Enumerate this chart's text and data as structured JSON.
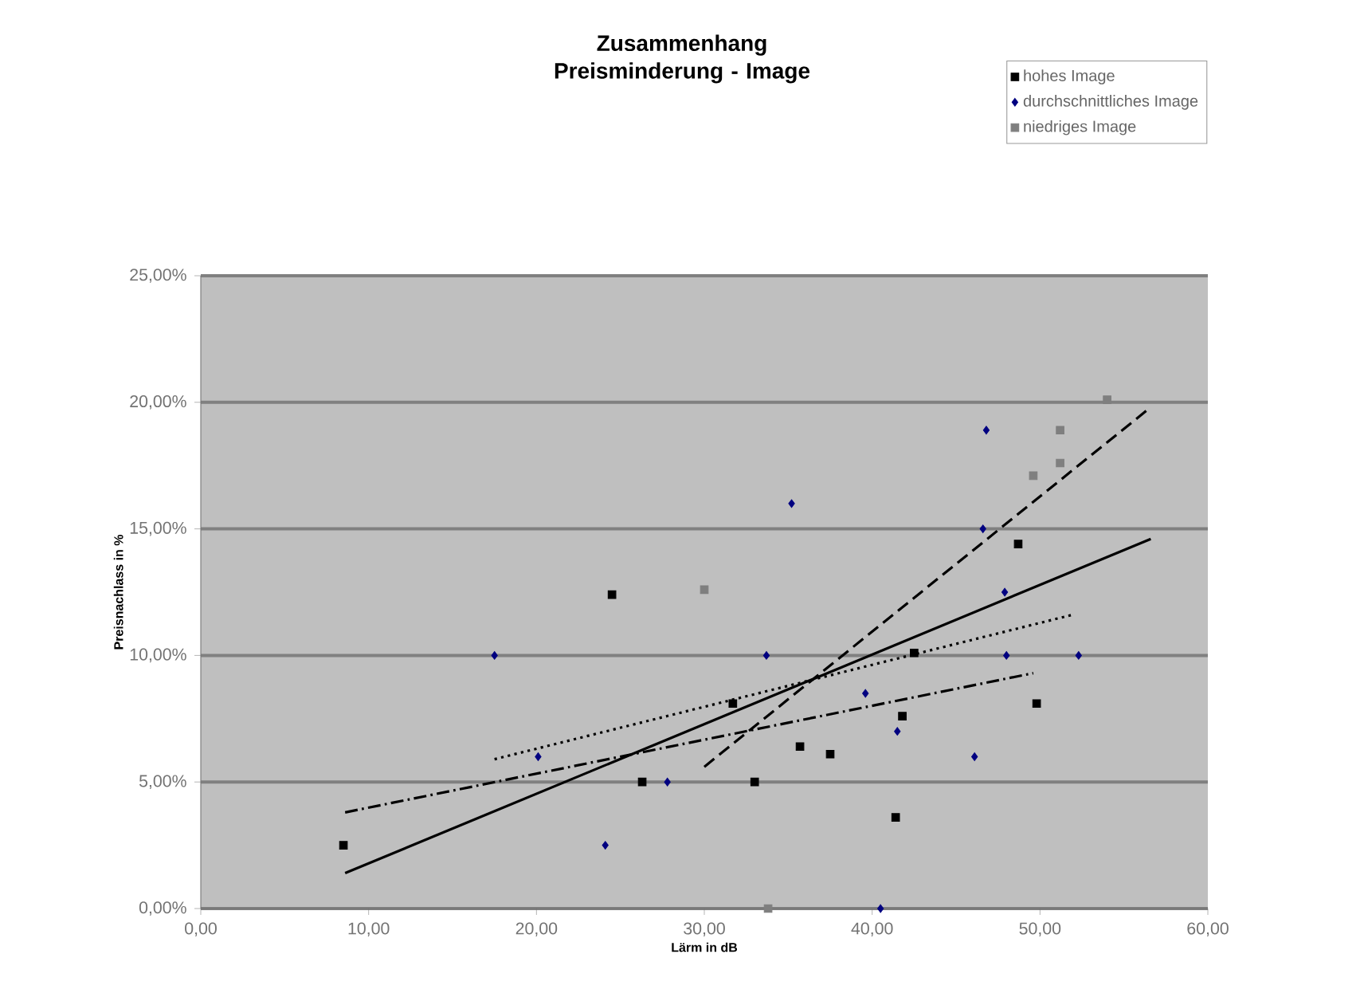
{
  "chart_data": {
    "type": "scatter",
    "title": "Zusammenhang Preisminderung - Image",
    "xlabel": "Lärm in dB",
    "ylabel": "Preisnachlass in %",
    "xlim": [
      0,
      60
    ],
    "ylim": [
      0,
      25
    ],
    "xticks": [
      {
        "value": 0,
        "label": "0,00"
      },
      {
        "value": 10,
        "label": "10,00"
      },
      {
        "value": 20,
        "label": "20,00"
      },
      {
        "value": 30,
        "label": "30,00"
      },
      {
        "value": 40,
        "label": "40,00"
      },
      {
        "value": 50,
        "label": "50,00"
      },
      {
        "value": 60,
        "label": "60,00"
      }
    ],
    "yticks": [
      {
        "value": 0,
        "label": "0,00%"
      },
      {
        "value": 5,
        "label": "5,00%"
      },
      {
        "value": 10,
        "label": "10,00%"
      },
      {
        "value": 15,
        "label": "15,00%"
      },
      {
        "value": 20,
        "label": "20,00%"
      },
      {
        "value": 25,
        "label": "25,00%"
      }
    ],
    "grid": "y",
    "legend": "top right",
    "series": [
      {
        "name": "hohes Image",
        "color": "#000000",
        "marker": "square",
        "x": [
          8.5,
          24.5,
          26.3,
          31.7,
          33.0,
          35.7,
          37.5,
          41.4,
          41.8,
          42.5,
          48.7,
          49.8
        ],
        "values": [
          2.5,
          12.4,
          5.0,
          8.1,
          5.0,
          6.4,
          6.1,
          3.6,
          7.6,
          10.1,
          14.4,
          8.1
        ]
      },
      {
        "name": "durchschnittliches Image",
        "color": "#000080",
        "marker": "diamond",
        "x": [
          17.5,
          20.1,
          24.1,
          27.8,
          33.7,
          35.2,
          39.6,
          40.5,
          41.5,
          46.1,
          46.6,
          46.8,
          47.9,
          48.0,
          52.3
        ],
        "values": [
          10.0,
          6.0,
          2.5,
          5.0,
          10.0,
          16.0,
          8.5,
          0.0,
          7.0,
          6.0,
          15.0,
          18.9,
          12.5,
          10.0,
          10.0
        ]
      },
      {
        "name": "niedriges Image",
        "color": "#7f7f7f",
        "marker": "square",
        "x": [
          30.0,
          33.8,
          49.6,
          51.2,
          51.2,
          54.0
        ],
        "values": [
          12.6,
          0.0,
          17.1,
          17.6,
          18.9,
          20.1
        ]
      },
      {
        "type": "line",
        "color": "#000000",
        "line_style": "solid",
        "x": [
          8.6,
          56.6
        ],
        "values": [
          1.4,
          14.6
        ]
      },
      {
        "type": "line",
        "color": "#000000",
        "line_style": "dashed",
        "x": [
          30.0,
          56.4
        ],
        "values": [
          5.6,
          19.7
        ]
      },
      {
        "type": "line",
        "color": "#000000",
        "line_style": "dotted",
        "x": [
          17.5,
          51.9
        ],
        "values": [
          5.9,
          11.6
        ]
      },
      {
        "type": "line",
        "color": "#000000",
        "line_style": "dashdot",
        "x": [
          8.6,
          49.6
        ],
        "values": [
          3.8,
          9.3
        ]
      }
    ]
  }
}
